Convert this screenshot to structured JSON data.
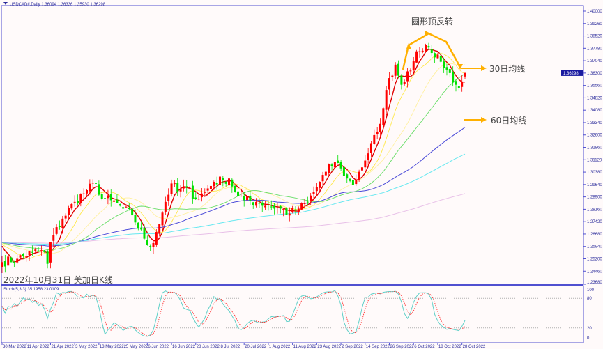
{
  "header": {
    "symbol_line": "USDCAD#,Daily  1.36094 1.36336 1.35930 1.36298"
  },
  "annotations": {
    "pattern": "圆形顶反转",
    "ma30": "30日均线",
    "ma60": "60日均线",
    "caption": "2022年10月31日 美加日K线"
  },
  "colors": {
    "up": "#ff0000",
    "down": "#00e000",
    "ma5": "#e00000",
    "ma10": "#ffe84a",
    "ma20": "#fff0a0",
    "ma30": "#66dd66",
    "ma60": "#4a4ad8",
    "ma100": "#66e8f0",
    "ma200": "#e8c0e8",
    "annotation": "#ffb000",
    "axis": "#5050d0",
    "stoch_main": "#5fd0c8",
    "stoch_signal": "#ff3030"
  },
  "chart_data": {
    "type": "candlestick",
    "title": "USDCAD#,Daily",
    "last_bar": {
      "open": 1.36094,
      "high": 1.36336,
      "low": 1.3593,
      "close": 1.36298
    },
    "current_price_label": "1.36298",
    "ylim": [
      1.2368,
      1.4
    ],
    "yticks": [
      "1.40000",
      "1.39260",
      "1.38520",
      "1.37780",
      "1.37040",
      "1.36300",
      "1.35560",
      "1.34820",
      "1.34080",
      "1.33340",
      "1.32600",
      "1.31860",
      "1.31120",
      "1.30380",
      "1.29640",
      "1.28900",
      "1.28160",
      "1.27420",
      "1.26680",
      "1.25940",
      "1.25200",
      "1.24460",
      "1.23680"
    ],
    "bar_count": 154,
    "close_keypoints": [
      [
        0,
        1.25
      ],
      [
        5,
        1.252
      ],
      [
        10,
        1.256
      ],
      [
        14,
        1.256
      ],
      [
        15,
        1.249
      ],
      [
        16,
        1.262
      ],
      [
        20,
        1.276
      ],
      [
        24,
        1.286
      ],
      [
        28,
        1.293
      ],
      [
        31,
        1.297
      ],
      [
        33,
        1.288
      ],
      [
        36,
        1.287
      ],
      [
        40,
        1.282
      ],
      [
        43,
        1.278
      ],
      [
        47,
        1.264
      ],
      [
        49,
        1.259
      ],
      [
        51,
        1.268
      ],
      [
        54,
        1.286
      ],
      [
        56,
        1.297
      ],
      [
        58,
        1.292
      ],
      [
        61,
        1.295
      ],
      [
        64,
        1.288
      ],
      [
        67,
        1.292
      ],
      [
        70,
        1.298
      ],
      [
        73,
        1.299
      ],
      [
        75,
        1.3
      ],
      [
        77,
        1.292
      ],
      [
        80,
        1.287
      ],
      [
        84,
        1.286
      ],
      [
        88,
        1.284
      ],
      [
        92,
        1.282
      ],
      [
        95,
        1.279
      ],
      [
        98,
        1.282
      ],
      [
        101,
        1.286
      ],
      [
        104,
        1.295
      ],
      [
        107,
        1.304
      ],
      [
        110,
        1.31
      ],
      [
        112,
        1.306
      ],
      [
        114,
        1.3
      ],
      [
        116,
        1.296
      ],
      [
        118,
        1.304
      ],
      [
        121,
        1.315
      ],
      [
        124,
        1.328
      ],
      [
        126,
        1.342
      ],
      [
        128,
        1.36
      ],
      [
        130,
        1.368
      ],
      [
        132,
        1.356
      ],
      [
        134,
        1.364
      ],
      [
        136,
        1.37
      ],
      [
        138,
        1.376
      ],
      [
        140,
        1.38
      ],
      [
        142,
        1.375
      ],
      [
        144,
        1.374
      ],
      [
        146,
        1.366
      ],
      [
        148,
        1.363
      ],
      [
        150,
        1.356
      ],
      [
        151,
        1.354
      ],
      [
        152,
        1.358
      ],
      [
        153,
        1.36298
      ]
    ],
    "ma_periods": [
      5,
      10,
      20,
      30,
      60,
      100,
      200
    ],
    "ma_seed_price": 1.262,
    "xticks": [
      [
        "30 Mar 2022",
        0
      ],
      [
        "11 Apr 2022",
        8
      ],
      [
        "21 Apr 2022",
        16
      ],
      [
        "3 May 2022",
        24
      ],
      [
        "13 May 2022",
        32
      ],
      [
        "25 May 2022",
        40
      ],
      [
        "6 Jun 2022",
        48
      ],
      [
        "16 Jun 2022",
        56
      ],
      [
        "28 Jun 2022",
        64
      ],
      [
        "8 Jul 2022",
        72
      ],
      [
        "20 Jul 2022",
        80
      ],
      [
        "1 Aug 2022",
        88
      ],
      [
        "11 Aug 2022",
        96
      ],
      [
        "23 Aug 2022",
        104
      ],
      [
        "2 Sep 2022",
        112
      ],
      [
        "14 Sep 2022",
        120
      ],
      [
        "26 Sep 2022",
        128
      ],
      [
        "6 Oct 2022",
        136
      ],
      [
        "18 Oct 2022",
        144
      ],
      [
        "28 Oct 2022",
        152
      ]
    ],
    "stochastic": {
      "label": "Stoch(5,3,3) 35.1958 23.0109",
      "params": [
        5,
        3,
        3
      ],
      "main_last": 35.1958,
      "signal_last": 23.0109,
      "levels": [
        20,
        80
      ],
      "scale_labels": [
        "100",
        "80",
        "20",
        "0"
      ]
    }
  }
}
